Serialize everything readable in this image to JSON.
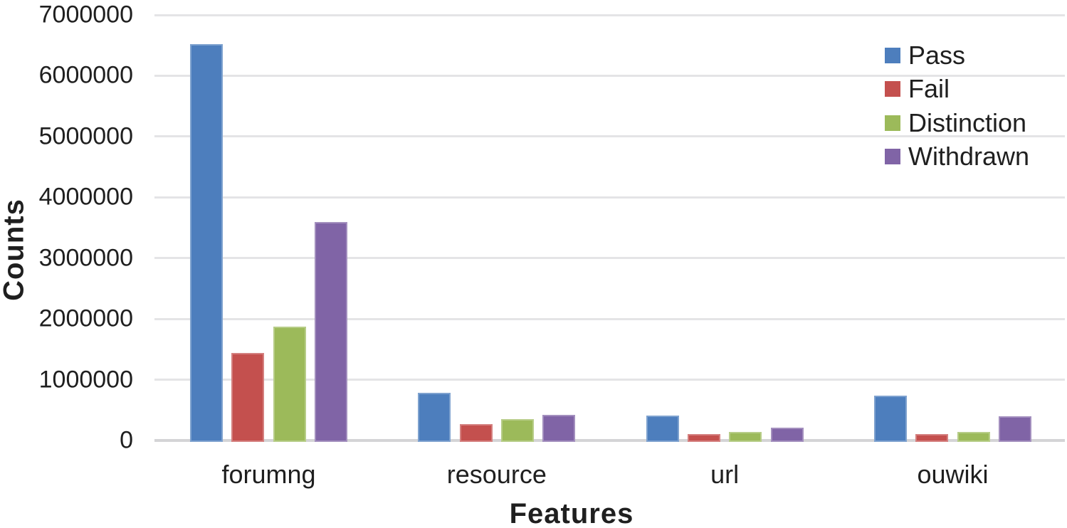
{
  "chart_data": {
    "type": "bar",
    "title": "",
    "xlabel": "Features",
    "ylabel": "Counts",
    "categories": [
      "forumng",
      "resource",
      "url",
      "ouwiki"
    ],
    "series": [
      {
        "name": "Pass",
        "color": "#4d7ebd",
        "values": [
          6540000,
          810000,
          430000,
          765000
        ]
      },
      {
        "name": "Fail",
        "color": "#c4504e",
        "values": [
          1460000,
          290000,
          130000,
          130000
        ]
      },
      {
        "name": "Distinction",
        "color": "#9cba5a",
        "values": [
          1900000,
          375000,
          165000,
          165000
        ]
      },
      {
        "name": "Withdrawn",
        "color": "#8064a6",
        "values": [
          3620000,
          445000,
          235000,
          420000
        ]
      }
    ],
    "ylim": [
      0,
      7000000
    ],
    "ytick_interval": 1000000,
    "ytick_labels": [
      "0",
      "1000000",
      "2000000",
      "3000000",
      "4000000",
      "5000000",
      "6000000",
      "7000000"
    ],
    "grid": true,
    "legend_position": "top-right"
  },
  "colors": {
    "gridline": "#e4e4e6",
    "axis_line": "#d4d4d6",
    "text": "#1f1f1f",
    "background": "#ffffff"
  }
}
